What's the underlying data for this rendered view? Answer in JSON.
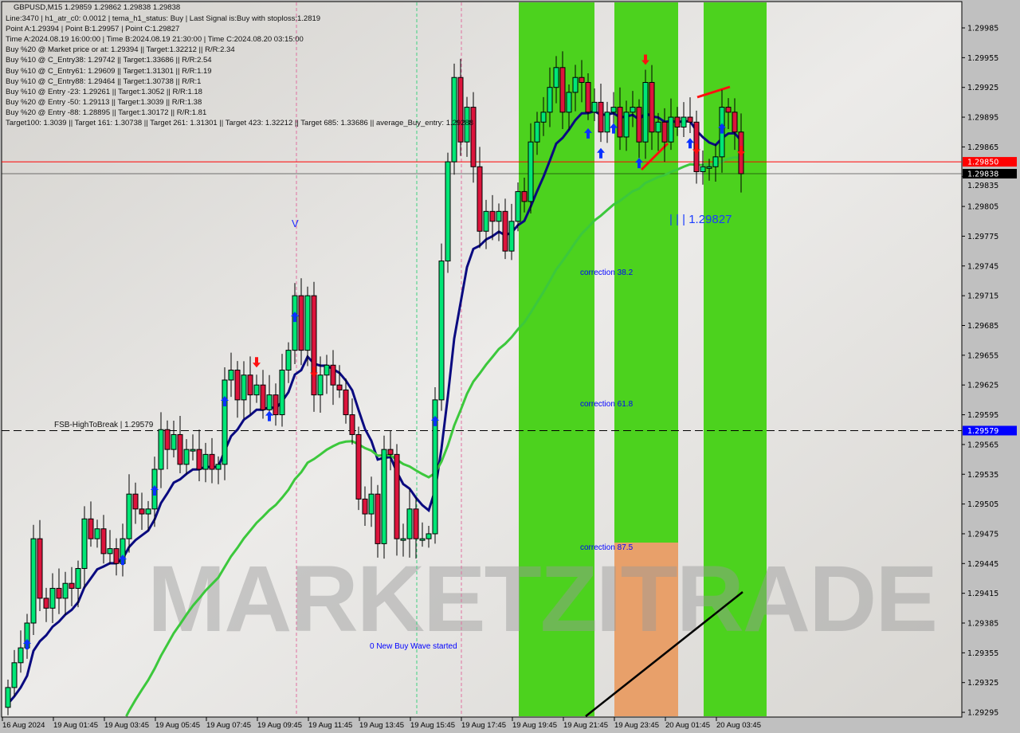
{
  "header": {
    "symbol_line": "GBPUSD,M15  1.29859 1.29862 1.29838 1.29838",
    "lines": [
      "Line:3470 | h1_atr_c0: 0.0012 | tema_h1_status: Buy | Last Signal is:Buy with stoploss:1.2819",
      "Point A:1.29394 | Point B:1.29957 | Point C:1.29827",
      "Time A:2024.08.19 16:00:00 | Time B:2024.08.19 21:30:00 | Time C:2024.08.20 03:15:00",
      "Buy %20 @ Market price or at: 1.29394 || Target:1.32212 || R/R:2.34",
      "Buy %10 @ C_Entry38: 1.29742 || Target:1.33686 || R/R:2.54",
      "Buy %10 @ C_Entry61: 1.29609 || Target:1.31301 || R/R:1.19",
      "Buy %10 @ C_Entry88: 1.29464 || Target:1.30738 || R/R:1",
      "Buy %10 @ Entry -23: 1.29261 || Target:1.3052 || R/R:1.18",
      "Buy %20 @ Entry -50: 1.29113 || Target:1.3039 || R/R:1.38",
      "Buy %20 @ Entry -88: 1.28895 || Target:1.30172 || R/R:1.81",
      "Target100: 1.3039 || Target 161: 1.30738 || Target 261: 1.31301 || Target 423: 1.32212 || Target 685: 1.33686 || average_Buy_entry: 1.29288"
    ]
  },
  "annotations": {
    "fsb_label": "FSB-HighToBreak | 1.29579",
    "v_mark": "V",
    "correction_382": "correction 38.2",
    "correction_618": "correction 61.8",
    "correction_875": "correction 87.5",
    "new_wave": "0 New Buy Wave started",
    "point_c": "| | | 1.29827",
    "watermark": "MARKETZITRADE"
  },
  "colors": {
    "bull": "#00e676",
    "bear": "#dc143c",
    "zone_green": "#4cd21e",
    "zone_orange": "#e8a06a",
    "ema_fast": "#0a0a80",
    "ema_slow": "#3cc83c",
    "price_line_red": "#ff0000",
    "fsb_line": "#0000c0"
  },
  "chart_data": {
    "type": "candlestick",
    "symbol": "GBPUSD",
    "timeframe": "M15",
    "ylim": [
      1.2928,
      1.3001
    ],
    "y_ticks": [
      "1.29985",
      "1.29955",
      "1.29925",
      "1.29895",
      "1.29865",
      "1.29835",
      "1.29805",
      "1.29775",
      "1.29745",
      "1.29715",
      "1.29685",
      "1.29655",
      "1.29625",
      "1.29595",
      "1.29565",
      "1.29535",
      "1.29505",
      "1.29475",
      "1.29445",
      "1.29415",
      "1.29385",
      "1.29355",
      "1.29325",
      "1.29295"
    ],
    "x_ticks": [
      "16 Aug 2024",
      "19 Aug 01:45",
      "19 Aug 03:45",
      "19 Aug 05:45",
      "19 Aug 07:45",
      "19 Aug 09:45",
      "19 Aug 11:45",
      "19 Aug 13:45",
      "19 Aug 15:45",
      "19 Aug 17:45",
      "19 Aug 19:45",
      "19 Aug 21:45",
      "19 Aug 23:45",
      "20 Aug 01:45",
      "20 Aug 03:45"
    ],
    "first_open": 1.293,
    "closes": [
      1.2932,
      1.29345,
      1.2936,
      1.29385,
      1.2947,
      1.2941,
      1.294,
      1.2942,
      1.2941,
      1.29425,
      1.2942,
      1.2944,
      1.2949,
      1.2947,
      1.2948,
      1.29455,
      1.2946,
      1.29445,
      1.2947,
      1.29515,
      1.295,
      1.29495,
      1.295,
      1.2954,
      1.2958,
      1.2956,
      1.29575,
      1.29545,
      1.2956,
      1.2956,
      1.2954,
      1.29555,
      1.2954,
      1.29545,
      1.2963,
      1.2964,
      1.2961,
      1.29635,
      1.29615,
      1.29625,
      1.296,
      1.29615,
      1.29595,
      1.2964,
      1.2966,
      1.29715,
      1.2966,
      1.29715,
      1.29615,
      1.29635,
      1.29645,
      1.29625,
      1.2962,
      1.29595,
      1.29575,
      1.2951,
      1.29495,
      1.29515,
      1.29465,
      1.2956,
      1.29555,
      1.2947,
      1.2947,
      1.295,
      1.2947,
      1.2947,
      1.29475,
      1.2961,
      1.2975,
      1.2985,
      1.29935,
      1.2987,
      1.29905,
      1.29845,
      1.2978,
      1.298,
      1.2979,
      1.298,
      1.2976,
      1.2979,
      1.2982,
      1.2981,
      1.2987,
      1.2989,
      1.299,
      1.29925,
      1.29945,
      1.299,
      1.2992,
      1.29935,
      1.2993,
      1.299,
      1.2991,
      1.2988,
      1.299,
      1.29905,
      1.29875,
      1.299,
      1.29905,
      1.2987,
      1.2993,
      1.2988,
      1.2989,
      1.2987,
      1.29895,
      1.29885,
      1.29895,
      1.2989,
      1.2984,
      1.29845,
      1.29845,
      1.29855,
      1.29905,
      1.299,
      1.2988,
      1.29838
    ],
    "horizontal_lines": [
      {
        "price": 1.2985,
        "label": "1.29850",
        "color": "#ff0000",
        "style": "solid"
      },
      {
        "price": 1.29838,
        "label": "1.29838",
        "color": "#000000",
        "style": "solid"
      },
      {
        "price": 1.29579,
        "label": "1.29579",
        "color": "#0000ff",
        "style": "dashed"
      }
    ],
    "buy_signal_bars": [
      3,
      18,
      23,
      34,
      41,
      45,
      67,
      91,
      93,
      95,
      99,
      107,
      112
    ],
    "sell_signal_bars": [
      39,
      48,
      100,
      108,
      115
    ],
    "grid": false
  }
}
